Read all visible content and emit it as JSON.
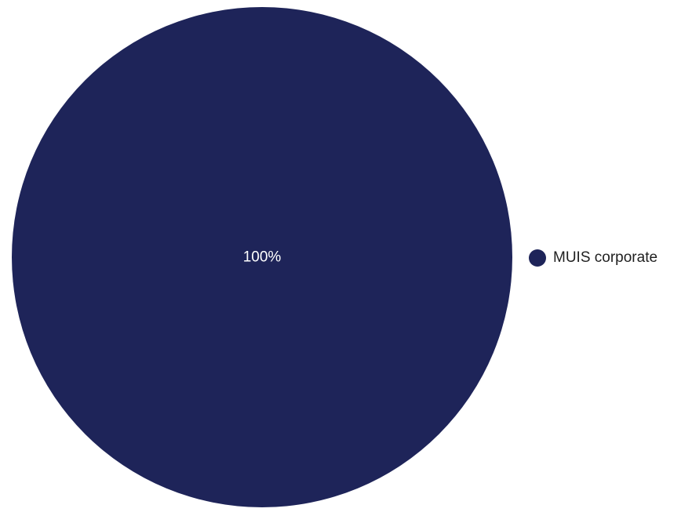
{
  "chart_data": {
    "type": "pie",
    "title": "",
    "slices": [
      {
        "label": "MUIS corporate",
        "value": 100,
        "percent_label": "100%",
        "color": "#1e2459"
      }
    ],
    "data_label_color": "#ffffff",
    "legend_position": "right"
  }
}
